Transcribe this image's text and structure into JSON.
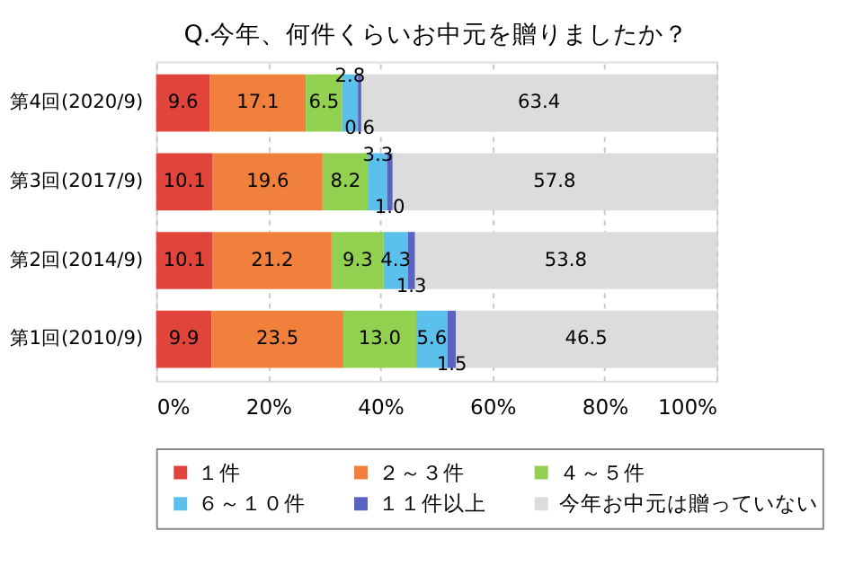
{
  "chart_data": {
    "type": "bar",
    "orientation": "horizontal",
    "stacked": true,
    "title": "Q.今年、何件くらいお中元を贈りましたか？",
    "categories": [
      "第4回(2020/9)",
      "第3回(2017/9)",
      "第2回(2014/9)",
      "第1回(2010/9)"
    ],
    "series": [
      {
        "name": "１件",
        "color": "#e0443a",
        "values": [
          9.6,
          10.1,
          10.1,
          9.9
        ],
        "value_labels": [
          "9.6",
          "10.1",
          "10.1",
          "9.9"
        ]
      },
      {
        "name": "２～３件",
        "color": "#f0803c",
        "values": [
          17.1,
          19.6,
          21.2,
          23.5
        ],
        "value_labels": [
          "17.1",
          "19.6",
          "21.2",
          "23.5"
        ]
      },
      {
        "name": "４～５件",
        "color": "#92d050",
        "values": [
          6.5,
          8.2,
          9.3,
          13.0
        ],
        "value_labels": [
          "6.5",
          "8.2",
          "9.3",
          "13.0"
        ]
      },
      {
        "name": "６～１０件",
        "color": "#5bc0eb",
        "values": [
          2.8,
          3.3,
          4.3,
          5.6
        ],
        "value_labels": [
          "2.8",
          "3.3",
          "4.3",
          "5.6"
        ]
      },
      {
        "name": "１１件以上",
        "color": "#5a64c0",
        "values": [
          0.6,
          1.0,
          1.3,
          1.5
        ],
        "value_labels": [
          "0.6",
          "1.0",
          "1.3",
          "1.5"
        ]
      },
      {
        "name": "今年お中元は贈っていない",
        "color": "#dcdcdc",
        "values": [
          63.4,
          57.8,
          53.8,
          46.5
        ],
        "value_labels": [
          "63.4",
          "57.8",
          "53.8",
          "46.5"
        ]
      }
    ],
    "xlim": [
      0,
      100
    ],
    "xticks": [
      {
        "value": 0,
        "label": "0%"
      },
      {
        "value": 20,
        "label": "20%"
      },
      {
        "value": 40,
        "label": "40%"
      },
      {
        "value": 60,
        "label": "60%"
      },
      {
        "value": 80,
        "label": "80%"
      },
      {
        "value": 100,
        "label": "100%"
      }
    ],
    "grid": "x",
    "legend": "bottom"
  }
}
